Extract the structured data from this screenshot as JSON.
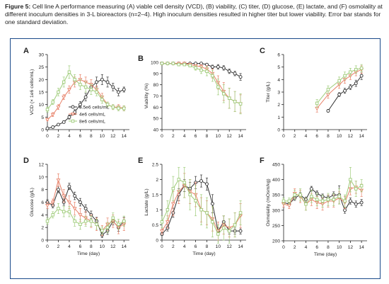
{
  "caption": {
    "label": "Figure 5:",
    "text": "Cell line A performance measuring (A) viable cell density (VCD), (B) viability, (C) titer, (D) glucose, (E) lactate, and (F) osmolality at different inoculum densities in 3-L bioreactors (n=2–4). High inoculum densities resulted in higher titer but lower viability. Error bar stands for one standard deviation."
  },
  "colors": {
    "s1": "#333333",
    "s2": "#e8826a",
    "s3": "#9fcc7a",
    "frame": "#1a4a8a"
  },
  "chart_data": [
    {
      "panel": "A",
      "type": "line",
      "xlabel": "",
      "ylabel": "VCD (× 1e6 cells/mL)",
      "xlim": [
        0,
        15
      ],
      "ylim": [
        0,
        30
      ],
      "xticks": [
        "0",
        "2",
        "4",
        "6",
        "8",
        "10",
        "12",
        "14"
      ],
      "yticks": [
        "0",
        "5",
        "10",
        "15",
        "20",
        "25",
        "30"
      ],
      "legend": [
        "0.5e6 cells/mL",
        "4e6 cells/mL",
        "8e6 cells/mL"
      ],
      "series": [
        {
          "name": "0.5e6 cells/mL",
          "x": [
            0,
            1,
            2,
            3,
            4,
            5,
            6,
            7,
            8,
            9,
            10,
            11,
            12,
            13,
            14
          ],
          "y": [
            0.5,
            1,
            2,
            3,
            5,
            7,
            10,
            13,
            17,
            19,
            20,
            19,
            17,
            15,
            16
          ],
          "err": [
            0.2,
            0.2,
            0.3,
            0.5,
            0.8,
            1,
            1.2,
            1.5,
            1.5,
            2,
            2,
            2,
            1.5,
            1.5,
            1
          ]
        },
        {
          "name": "4e6 cells/mL",
          "x": [
            0,
            1,
            2,
            3,
            4,
            5,
            6,
            7,
            8,
            9,
            10,
            11,
            12,
            13,
            14
          ],
          "y": [
            4,
            6,
            9,
            13,
            16,
            19,
            20,
            19,
            18,
            16,
            13,
            10,
            9,
            9,
            8.5
          ],
          "err": [
            0.5,
            0.8,
            1,
            1,
            1.5,
            2,
            2,
            2,
            2,
            1.5,
            1.5,
            1,
            1,
            1,
            1
          ]
        },
        {
          "name": "8e6 cells/mL",
          "x": [
            0,
            1,
            2,
            3,
            4,
            5,
            6,
            7,
            8,
            9,
            10,
            11,
            12,
            13,
            14
          ],
          "y": [
            8,
            11,
            15,
            19,
            23,
            20,
            18,
            17,
            16,
            15,
            12,
            10,
            9,
            8.5,
            8.5
          ],
          "err": [
            1,
            1,
            1.5,
            2,
            2.5,
            2,
            2,
            2,
            2,
            1.5,
            1.5,
            1,
            1,
            1,
            1
          ]
        }
      ]
    },
    {
      "panel": "B",
      "type": "line",
      "xlabel": "",
      "ylabel": "Viability (%)",
      "xlim": [
        0,
        15
      ],
      "ylim": [
        40,
        100
      ],
      "xticks": [
        "0",
        "2",
        "4",
        "6",
        "8",
        "10",
        "12",
        "14"
      ],
      "yticks": [
        "40",
        "50",
        "60",
        "70",
        "80",
        "90",
        "100"
      ],
      "series": [
        {
          "name": "0.5e6 cells/mL",
          "x": [
            0,
            1,
            2,
            3,
            4,
            5,
            6,
            7,
            8,
            9,
            10,
            11,
            12,
            13,
            14
          ],
          "y": [
            99,
            99,
            99,
            99,
            99,
            99,
            99,
            99,
            98,
            96,
            96,
            95,
            92,
            90,
            87
          ],
          "err": [
            0.5,
            0.5,
            0.5,
            0.5,
            0.5,
            0.5,
            0.5,
            0.5,
            1,
            1.5,
            2,
            2,
            2,
            2,
            3
          ]
        },
        {
          "name": "4e6 cells/mL",
          "x": [
            0,
            1,
            2,
            3,
            4,
            5,
            6,
            7,
            8,
            9,
            10,
            11,
            12,
            13,
            14
          ],
          "y": [
            99,
            99,
            99,
            99,
            99,
            98,
            97,
            96,
            94,
            90,
            82,
            74,
            68,
            65,
            63
          ],
          "err": [
            0.5,
            0.5,
            0.5,
            0.5,
            0.5,
            1,
            1,
            2,
            3,
            4,
            6,
            8,
            9,
            9,
            8
          ]
        },
        {
          "name": "8e6 cells/mL",
          "x": [
            0,
            1,
            2,
            3,
            4,
            5,
            6,
            7,
            8,
            9,
            10,
            11,
            12,
            13,
            14
          ],
          "y": [
            99,
            99,
            99,
            98,
            98,
            97,
            95,
            93,
            92,
            88,
            78,
            72,
            68,
            65,
            63
          ],
          "err": [
            0.5,
            0.5,
            0.5,
            1,
            1,
            1,
            2,
            3,
            4,
            5,
            7,
            8,
            9,
            9,
            9
          ]
        }
      ]
    },
    {
      "panel": "C",
      "type": "line",
      "xlabel": "",
      "ylabel": "Titer (g/L)",
      "xlim": [
        0,
        15
      ],
      "ylim": [
        0,
        6
      ],
      "xticks": [
        "0",
        "2",
        "4",
        "6",
        "8",
        "10",
        "12",
        "14"
      ],
      "yticks": [
        "0",
        "1",
        "2",
        "3",
        "4",
        "5",
        "6"
      ],
      "series": [
        {
          "name": "0.5e6 cells/mL",
          "x": [
            8,
            10,
            11,
            12,
            13,
            14
          ],
          "y": [
            1.5,
            2.8,
            3.1,
            3.4,
            3.7,
            4.3
          ],
          "err": [
            0.1,
            0.15,
            0.2,
            0.2,
            0.25,
            0.3
          ]
        },
        {
          "name": "4e6 cells/mL",
          "x": [
            6,
            8,
            10,
            11,
            12,
            13,
            14
          ],
          "y": [
            1.7,
            2.8,
            3.6,
            4.0,
            4.3,
            4.6,
            4.8
          ],
          "err": [
            0.3,
            0.3,
            0.3,
            0.3,
            0.3,
            0.3,
            0.3
          ]
        },
        {
          "name": "8e6 cells/mL",
          "x": [
            6,
            8,
            10,
            11,
            12,
            13,
            14
          ],
          "y": [
            2.1,
            3.2,
            3.9,
            4.3,
            4.6,
            4.8,
            4.9
          ],
          "err": [
            0.3,
            0.3,
            0.3,
            0.3,
            0.3,
            0.3,
            0.3
          ]
        }
      ]
    },
    {
      "panel": "D",
      "type": "line",
      "xlabel": "Time (day)",
      "ylabel": "Glucose (g/L)",
      "xlim": [
        0,
        15
      ],
      "ylim": [
        0,
        12
      ],
      "xticks": [
        "0",
        "2",
        "4",
        "6",
        "8",
        "10",
        "12",
        "14"
      ],
      "yticks": [
        "0",
        "2",
        "4",
        "6",
        "8",
        "10",
        "12"
      ],
      "series": [
        {
          "name": "0.5e6 cells/mL",
          "x": [
            0,
            1,
            2,
            3,
            4,
            5,
            6,
            7,
            8,
            9,
            10,
            11,
            12,
            13,
            14
          ],
          "y": [
            6,
            5.5,
            8,
            6,
            8.5,
            7,
            6,
            5,
            4,
            3,
            0.8,
            1.5,
            3,
            2,
            3
          ],
          "err": [
            0.4,
            0.4,
            0.5,
            0.5,
            0.5,
            0.6,
            0.6,
            0.6,
            0.6,
            0.6,
            0.4,
            0.6,
            0.6,
            0.6,
            0.6
          ]
        },
        {
          "name": "4e6 cells/mL",
          "x": [
            0,
            1,
            2,
            3,
            4,
            5,
            6,
            7,
            8,
            9,
            10,
            11,
            12,
            13,
            14
          ],
          "y": [
            5.5,
            6,
            9.5,
            7,
            6,
            5,
            4,
            3.5,
            3,
            2.5,
            1.5,
            2.5,
            3,
            2,
            2.5
          ],
          "err": [
            0.5,
            0.5,
            1,
            1,
            1,
            1,
            1,
            1,
            1,
            1,
            0.8,
            1,
            1,
            1,
            1
          ]
        },
        {
          "name": "8e6 cells/mL",
          "x": [
            0,
            1,
            2,
            3,
            4,
            5,
            6,
            7,
            8,
            9,
            10,
            11,
            12,
            13,
            14
          ],
          "y": [
            3,
            4,
            5,
            4.5,
            4.5,
            3,
            2.5,
            3,
            3,
            2.5,
            1.5,
            2,
            3.5,
            2.5,
            3
          ],
          "err": [
            0.5,
            0.5,
            0.8,
            0.8,
            0.8,
            0.8,
            0.8,
            0.8,
            0.8,
            0.8,
            0.6,
            0.8,
            0.8,
            0.8,
            0.8
          ]
        }
      ]
    },
    {
      "panel": "E",
      "type": "line",
      "xlabel": "Time (day)",
      "ylabel": "Lactate (g/L)",
      "xlim": [
        0,
        15
      ],
      "ylim": [
        0,
        2.5
      ],
      "xticks": [
        "0",
        "2",
        "4",
        "6",
        "8",
        "10",
        "12",
        "14"
      ],
      "yticks": [
        "0",
        "0.5",
        "1",
        "1.5",
        "2",
        "2.5"
      ],
      "series": [
        {
          "name": "0.5e6 cells/mL",
          "x": [
            0,
            1,
            2,
            3,
            4,
            5,
            6,
            7,
            8,
            9,
            10,
            11,
            12,
            13,
            14
          ],
          "y": [
            0.2,
            0.4,
            0.9,
            1.5,
            1.8,
            1.7,
            1.9,
            1.95,
            1.85,
            1.2,
            0.3,
            0.6,
            0.3,
            0.3,
            0.3
          ],
          "err": [
            0.05,
            0.1,
            0.15,
            0.2,
            0.2,
            0.2,
            0.2,
            0.2,
            0.2,
            0.3,
            0.1,
            0.2,
            0.1,
            0.1,
            0.1
          ]
        },
        {
          "name": "4e6 cells/mL",
          "x": [
            0,
            1,
            2,
            3,
            4,
            5,
            6,
            7,
            8,
            9,
            10,
            11,
            12,
            13,
            14
          ],
          "y": [
            0.3,
            0.6,
            1.2,
            1.6,
            1.8,
            1.6,
            1.5,
            1.0,
            0.9,
            0.7,
            0.3,
            0.5,
            0.4,
            0.5,
            0.8
          ],
          "err": [
            0.1,
            0.2,
            0.4,
            0.4,
            0.4,
            0.4,
            0.4,
            0.4,
            0.4,
            0.4,
            0.3,
            0.3,
            0.3,
            0.4,
            0.4
          ]
        },
        {
          "name": "8e6 cells/mL",
          "x": [
            0,
            1,
            2,
            3,
            4,
            5,
            6,
            7,
            8,
            9,
            10,
            11,
            12,
            13,
            14
          ],
          "y": [
            0.6,
            1.0,
            1.7,
            2.0,
            1.9,
            1.5,
            1.3,
            1.0,
            0.9,
            0.6,
            0.2,
            0.4,
            0.3,
            0.5,
            0.9
          ],
          "err": [
            0.2,
            0.3,
            0.4,
            0.4,
            0.5,
            0.5,
            0.5,
            0.5,
            0.5,
            0.5,
            0.3,
            0.4,
            0.4,
            0.4,
            0.4
          ]
        }
      ]
    },
    {
      "panel": "F",
      "type": "line",
      "xlabel": "Time (day)",
      "ylabel": "Osmolality (mOsm/kg)",
      "xlim": [
        0,
        15
      ],
      "ylim": [
        200,
        450
      ],
      "xticks": [
        "0",
        "2",
        "4",
        "6",
        "8",
        "10",
        "12",
        "14"
      ],
      "yticks": [
        "200",
        "250",
        "300",
        "350",
        "400",
        "450"
      ],
      "series": [
        {
          "name": "0.5e6 cells/mL",
          "x": [
            0,
            1,
            2,
            3,
            4,
            5,
            6,
            7,
            8,
            9,
            10,
            11,
            12,
            13,
            14
          ],
          "y": [
            325,
            320,
            340,
            350,
            335,
            370,
            355,
            345,
            340,
            350,
            350,
            300,
            330,
            320,
            325
          ],
          "err": [
            5,
            5,
            8,
            8,
            8,
            8,
            8,
            8,
            8,
            10,
            30,
            10,
            10,
            10,
            10
          ]
        },
        {
          "name": "4e6 cells/mL",
          "x": [
            0,
            1,
            2,
            3,
            4,
            5,
            6,
            7,
            8,
            9,
            10,
            11,
            12,
            13,
            14
          ],
          "y": [
            320,
            315,
            355,
            345,
            320,
            335,
            325,
            320,
            330,
            330,
            340,
            325,
            370,
            375,
            365
          ],
          "err": [
            10,
            10,
            15,
            20,
            20,
            20,
            20,
            20,
            20,
            20,
            20,
            20,
            20,
            20,
            20
          ]
        },
        {
          "name": "8e6 cells/mL",
          "x": [
            0,
            1,
            2,
            3,
            4,
            5,
            6,
            7,
            8,
            9,
            10,
            11,
            12,
            13,
            14
          ],
          "y": [
            330,
            330,
            350,
            350,
            320,
            345,
            335,
            330,
            335,
            335,
            345,
            330,
            400,
            370,
            380
          ],
          "err": [
            10,
            10,
            15,
            20,
            20,
            20,
            20,
            20,
            20,
            20,
            25,
            20,
            40,
            25,
            20
          ]
        }
      ]
    }
  ]
}
